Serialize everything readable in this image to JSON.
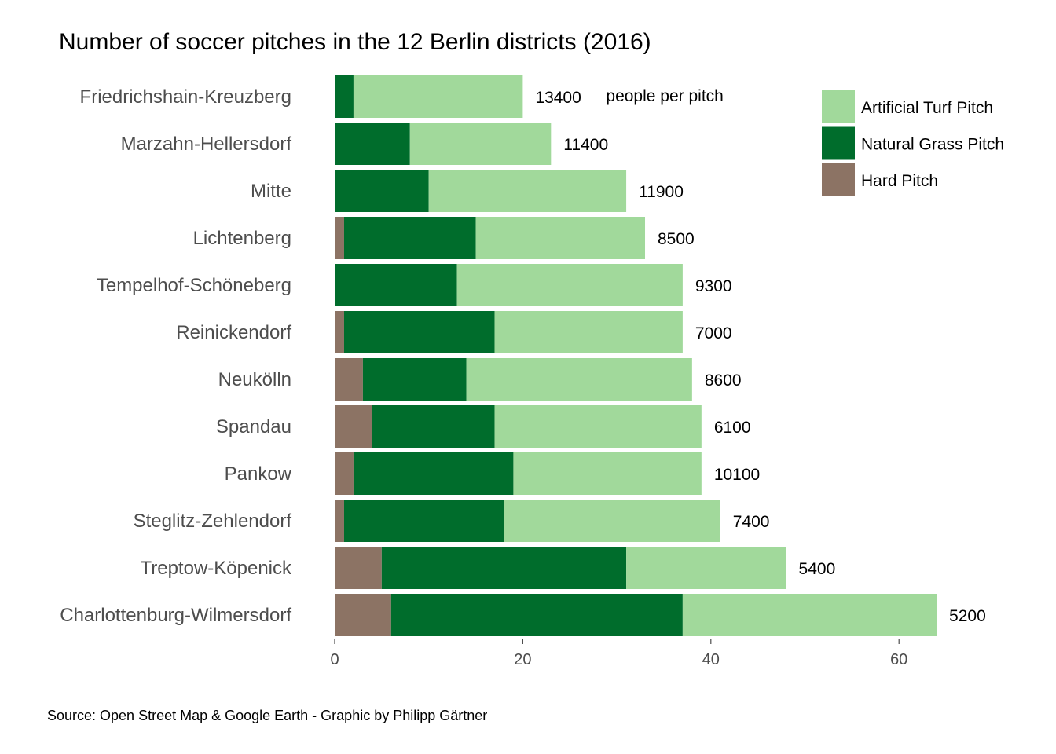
{
  "chart_data": {
    "type": "bar",
    "orientation": "horizontal",
    "stacked": true,
    "title": "Number of soccer pitches in the 12 Berlin districts (2016)",
    "caption": "Source: Open Street Map & Google Earth - Graphic by Philipp Gärtner",
    "categories": [
      "Friedrichshain-Kreuzberg",
      "Marzahn-Hellersdorf",
      "Mitte",
      "Lichtenberg",
      "Tempelhof-Schöneberg",
      "Reinickendorf",
      "Neukölln",
      "Spandau",
      "Pankow",
      "Steglitz-Zehlendorf",
      "Treptow-Köpenick",
      "Charlottenburg-Wilmersdorf"
    ],
    "series": [
      {
        "name": "Hard Pitch",
        "color": "#8c7364",
        "values": [
          0,
          0,
          0,
          1,
          0,
          1,
          3,
          4,
          2,
          1,
          5,
          6
        ]
      },
      {
        "name": "Natural Grass Pitch",
        "color": "#006d2c",
        "values": [
          2,
          8,
          10,
          14,
          13,
          16,
          11,
          13,
          17,
          17,
          26,
          31
        ]
      },
      {
        "name": "Artificial Turf Pitch",
        "color": "#a1d99b",
        "values": [
          18,
          15,
          21,
          18,
          24,
          20,
          24,
          22,
          20,
          23,
          17,
          27
        ]
      }
    ],
    "people_per_pitch": [
      "13400",
      "11400",
      "11900",
      "8500",
      "9300",
      "7000",
      "8600",
      "6100",
      "10100",
      "7400",
      "5400",
      "5200"
    ],
    "people_per_pitch_unit": "people per pitch",
    "xlim": [
      0,
      66
    ],
    "xticks": [
      0,
      20,
      40,
      60
    ],
    "legend": {
      "placement": "top-right",
      "order": [
        "Artificial Turf Pitch",
        "Natural Grass Pitch",
        "Hard Pitch"
      ]
    },
    "grid": false
  }
}
